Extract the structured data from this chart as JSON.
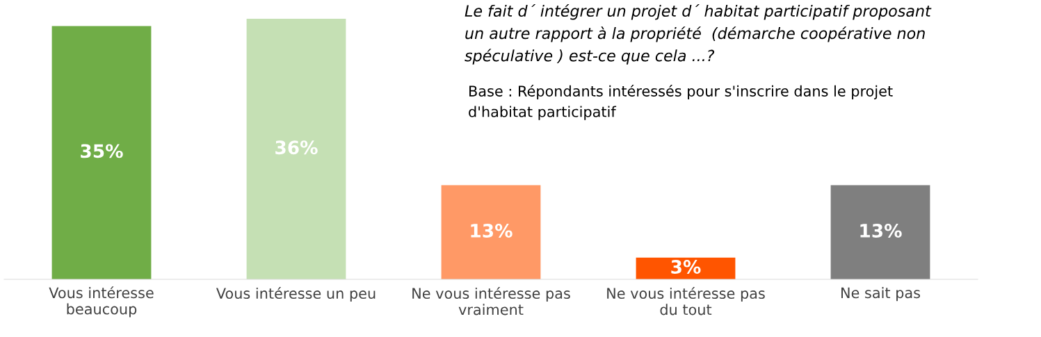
{
  "chart_data": {
    "type": "bar",
    "title": "Le fait d´ intégrer un projet d´ habitat participatif proposant\nun autre rapport à la propriété  (démarche coopérative non\nspéculative ) est-ce que cela ...?",
    "annotations": [
      "Base : Répondants intéressés pour s'inscrire dans le projet\nd'habitat participatif"
    ],
    "categories": [
      "Vous intéresse\nbeaucoup",
      "Vous intéresse un peu",
      "Ne vous intéresse pas\nvraiment",
      "Ne vous intéresse pas\ndu tout",
      "Ne sait pas"
    ],
    "values": [
      35,
      36,
      13,
      3,
      13
    ],
    "colors": [
      "#70ad47",
      "#c5e0b4",
      "#ff9966",
      "#ff5500",
      "#7f7f7f"
    ],
    "value_labels": [
      "35%",
      "36%",
      "13%",
      "3%",
      "13%"
    ],
    "legend": false,
    "grid": false
  }
}
